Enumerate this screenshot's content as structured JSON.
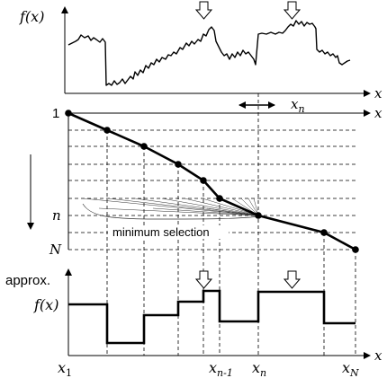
{
  "top_panel": {
    "y_label": "f(x)",
    "x_label": "x",
    "window_label": "x",
    "window_sub": "n"
  },
  "middle_panel": {
    "row_top_label": "1",
    "row_mid_label": "n",
    "row_bottom_label": "N",
    "x_label": "x",
    "annotation": "minimum selection"
  },
  "bottom_panel": {
    "title": "approx.",
    "y_label": "f(x)",
    "x_label": "x",
    "ticks": [
      {
        "base": "x",
        "sub": "1"
      },
      {
        "base": "x",
        "sub": "n-1"
      },
      {
        "base": "x",
        "sub": "n"
      },
      {
        "base": "x",
        "sub": "N"
      }
    ]
  }
}
